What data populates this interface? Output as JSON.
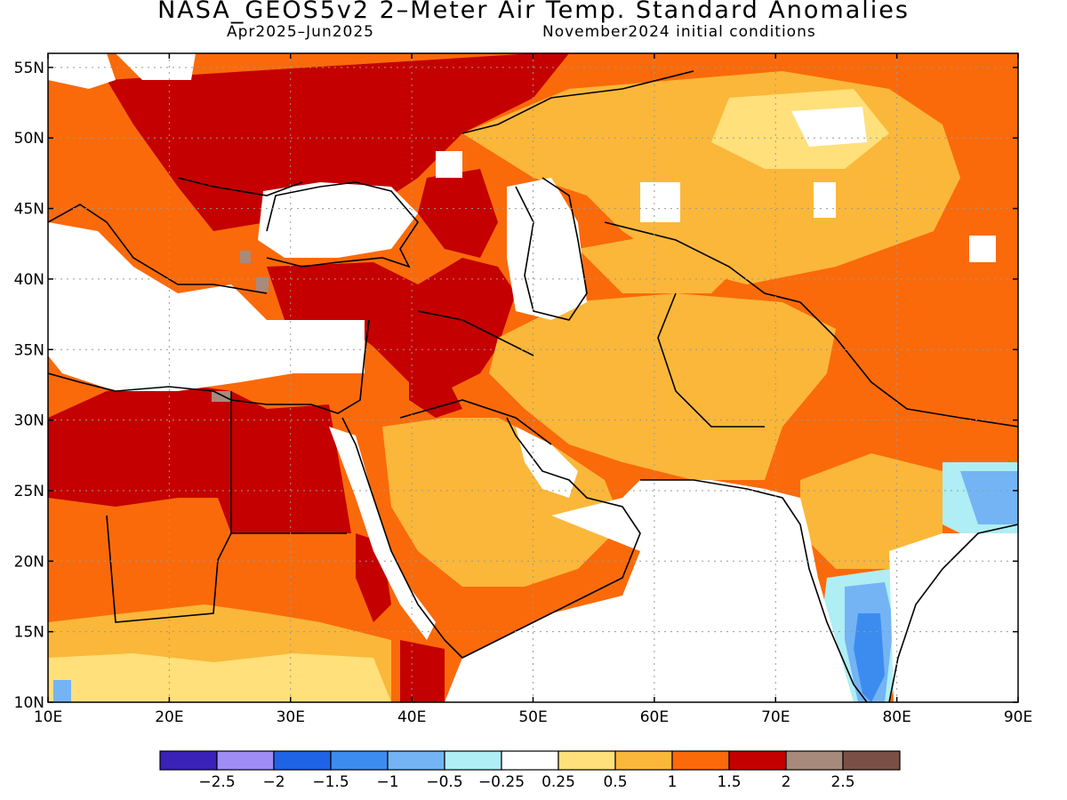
{
  "header": {
    "title": "NASA_GEOS5v2 2–Meter Air Temp. Standard Anomalies",
    "period": "Apr2025–Jun2025",
    "init": "November2024 initial conditions"
  },
  "axes": {
    "lon_labels": [
      "10E",
      "20E",
      "30E",
      "40E",
      "50E",
      "60E",
      "70E",
      "80E",
      "90E"
    ],
    "lat_labels": [
      "10N",
      "15N",
      "20N",
      "25N",
      "30N",
      "35N",
      "40N",
      "45N",
      "50N",
      "55N"
    ]
  },
  "legend": {
    "colors": [
      "#3a22b8",
      "#9f8cf5",
      "#1f64e6",
      "#3c8cf0",
      "#74b4f4",
      "#aeeef4",
      "#ffffff",
      "#ffe07a",
      "#fbb73a",
      "#fa6a0a",
      "#c40000",
      "#a88a7c",
      "#7a5046"
    ],
    "labels": [
      "−2.5",
      "−2",
      "−1.5",
      "−1",
      "−0.5",
      "−0.25",
      "0.25",
      "0.5",
      "1",
      "1.5",
      "2",
      "2.5"
    ]
  }
}
